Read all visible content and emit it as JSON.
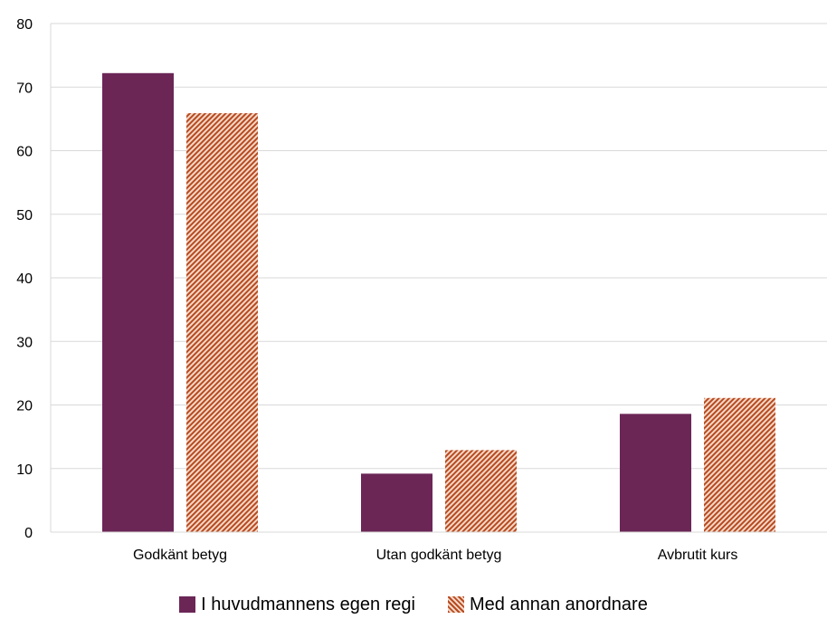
{
  "chart_data": {
    "type": "bar",
    "categories": [
      "Godkänt betyg",
      "Utan godkänt betyg",
      "Avbrutit kurs"
    ],
    "series": [
      {
        "name": "I huvudmannens egen regi",
        "values": [
          72.2,
          9.2,
          18.6
        ],
        "color": "#6b2656",
        "fill": "solid"
      },
      {
        "name": "Med annan anordnare",
        "values": [
          65.9,
          12.9,
          21.1
        ],
        "color": "#b84a1f",
        "fill": "hatch"
      }
    ],
    "ylim": [
      0,
      80
    ],
    "yticks": [
      0,
      10,
      20,
      30,
      40,
      50,
      60,
      70,
      80
    ],
    "grid": true,
    "legend_position": "bottom"
  }
}
